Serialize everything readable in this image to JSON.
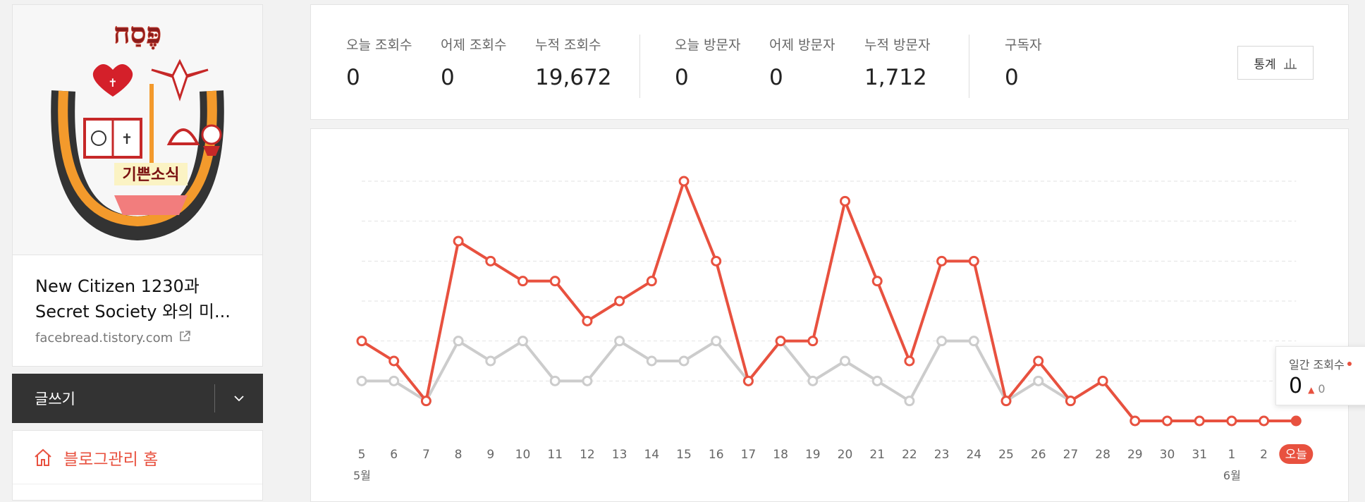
{
  "blog": {
    "title_line1": "New Citizen 1230과",
    "title_line2": "Secret Society 와의 미...",
    "url": "facebread.tistory.com",
    "logo_text_top": "פֶּסַח",
    "logo_text_banner": "기쁜소식"
  },
  "write": {
    "label": "글쓰기"
  },
  "menu": {
    "home_label": "블로그관리 홈"
  },
  "stats": {
    "today_views_label": "오늘 조회수",
    "today_views": "0",
    "yesterday_views_label": "어제 조회수",
    "yesterday_views": "0",
    "total_views_label": "누적 조회수",
    "total_views": "19,672",
    "today_visitors_label": "오늘 방문자",
    "today_visitors": "0",
    "yesterday_visitors_label": "어제 방문자",
    "yesterday_visitors": "0",
    "total_visitors_label": "누적 방문자",
    "total_visitors": "1,712",
    "subscribers_label": "구독자",
    "subscribers": "0",
    "button_label": "통계"
  },
  "tooltip": {
    "label": "일간 조회수",
    "value": "0",
    "delta": "0"
  },
  "colors": {
    "accent": "#e8513f",
    "secondary_series": "#cccccc",
    "grid": "#e2e2e2"
  },
  "chart_data": {
    "type": "line",
    "categories": [
      "5",
      "6",
      "7",
      "8",
      "9",
      "10",
      "11",
      "12",
      "13",
      "14",
      "15",
      "16",
      "17",
      "18",
      "19",
      "20",
      "21",
      "22",
      "23",
      "24",
      "25",
      "26",
      "27",
      "28",
      "29",
      "30",
      "31",
      "1",
      "2",
      "오늘"
    ],
    "month_labels": [
      {
        "at": "5",
        "label": "5월"
      },
      {
        "at": "1",
        "label": "6월"
      }
    ],
    "series": [
      {
        "color": "#e8513f",
        "values": [
          4,
          3,
          1,
          9,
          8,
          7,
          7,
          5,
          6,
          7,
          12,
          8,
          2,
          4,
          4,
          11,
          7,
          3,
          8,
          8,
          1,
          3,
          1,
          2,
          0,
          0,
          0,
          0,
          0,
          0
        ]
      },
      {
        "color": "#cccccc",
        "values": [
          2,
          2,
          1,
          4,
          3,
          4,
          2,
          2,
          4,
          3,
          3,
          4,
          2,
          4,
          2,
          3,
          2,
          1,
          4,
          4,
          1,
          2,
          1,
          2,
          0,
          0,
          0,
          0,
          0,
          0
        ]
      }
    ],
    "ylim": [
      0,
      12
    ],
    "grid": true,
    "highlight_last_category": true
  }
}
